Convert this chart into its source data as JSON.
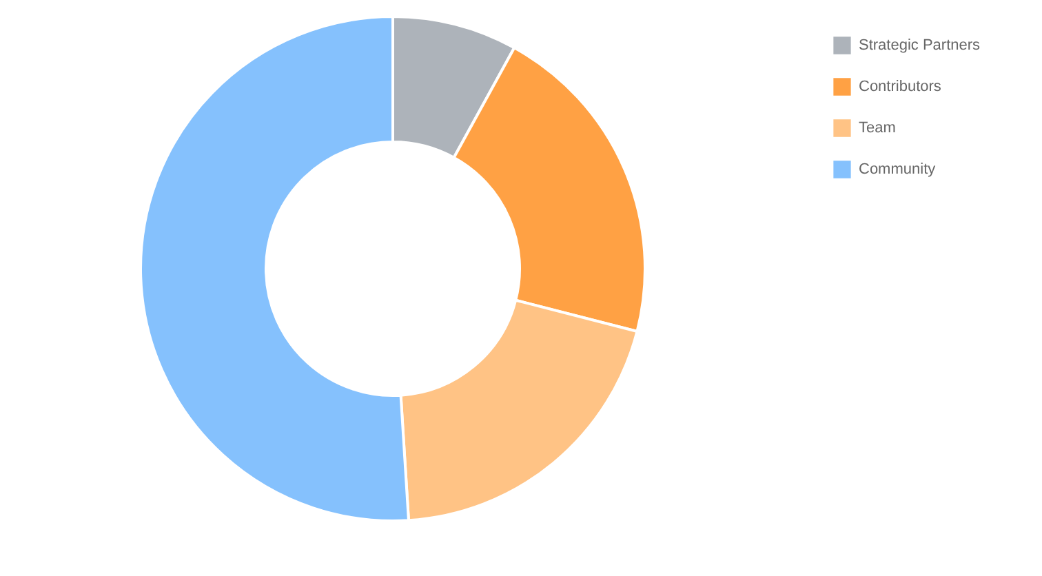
{
  "chart_data": {
    "type": "donut",
    "categories": [
      "Strategic Partners",
      "Contributors",
      "Team",
      "Community"
    ],
    "values": [
      8,
      21,
      20,
      51
    ],
    "colors": [
      "#adb3ba",
      "#ffa144",
      "#ffc385",
      "#85c1fd"
    ],
    "legend": "right"
  }
}
